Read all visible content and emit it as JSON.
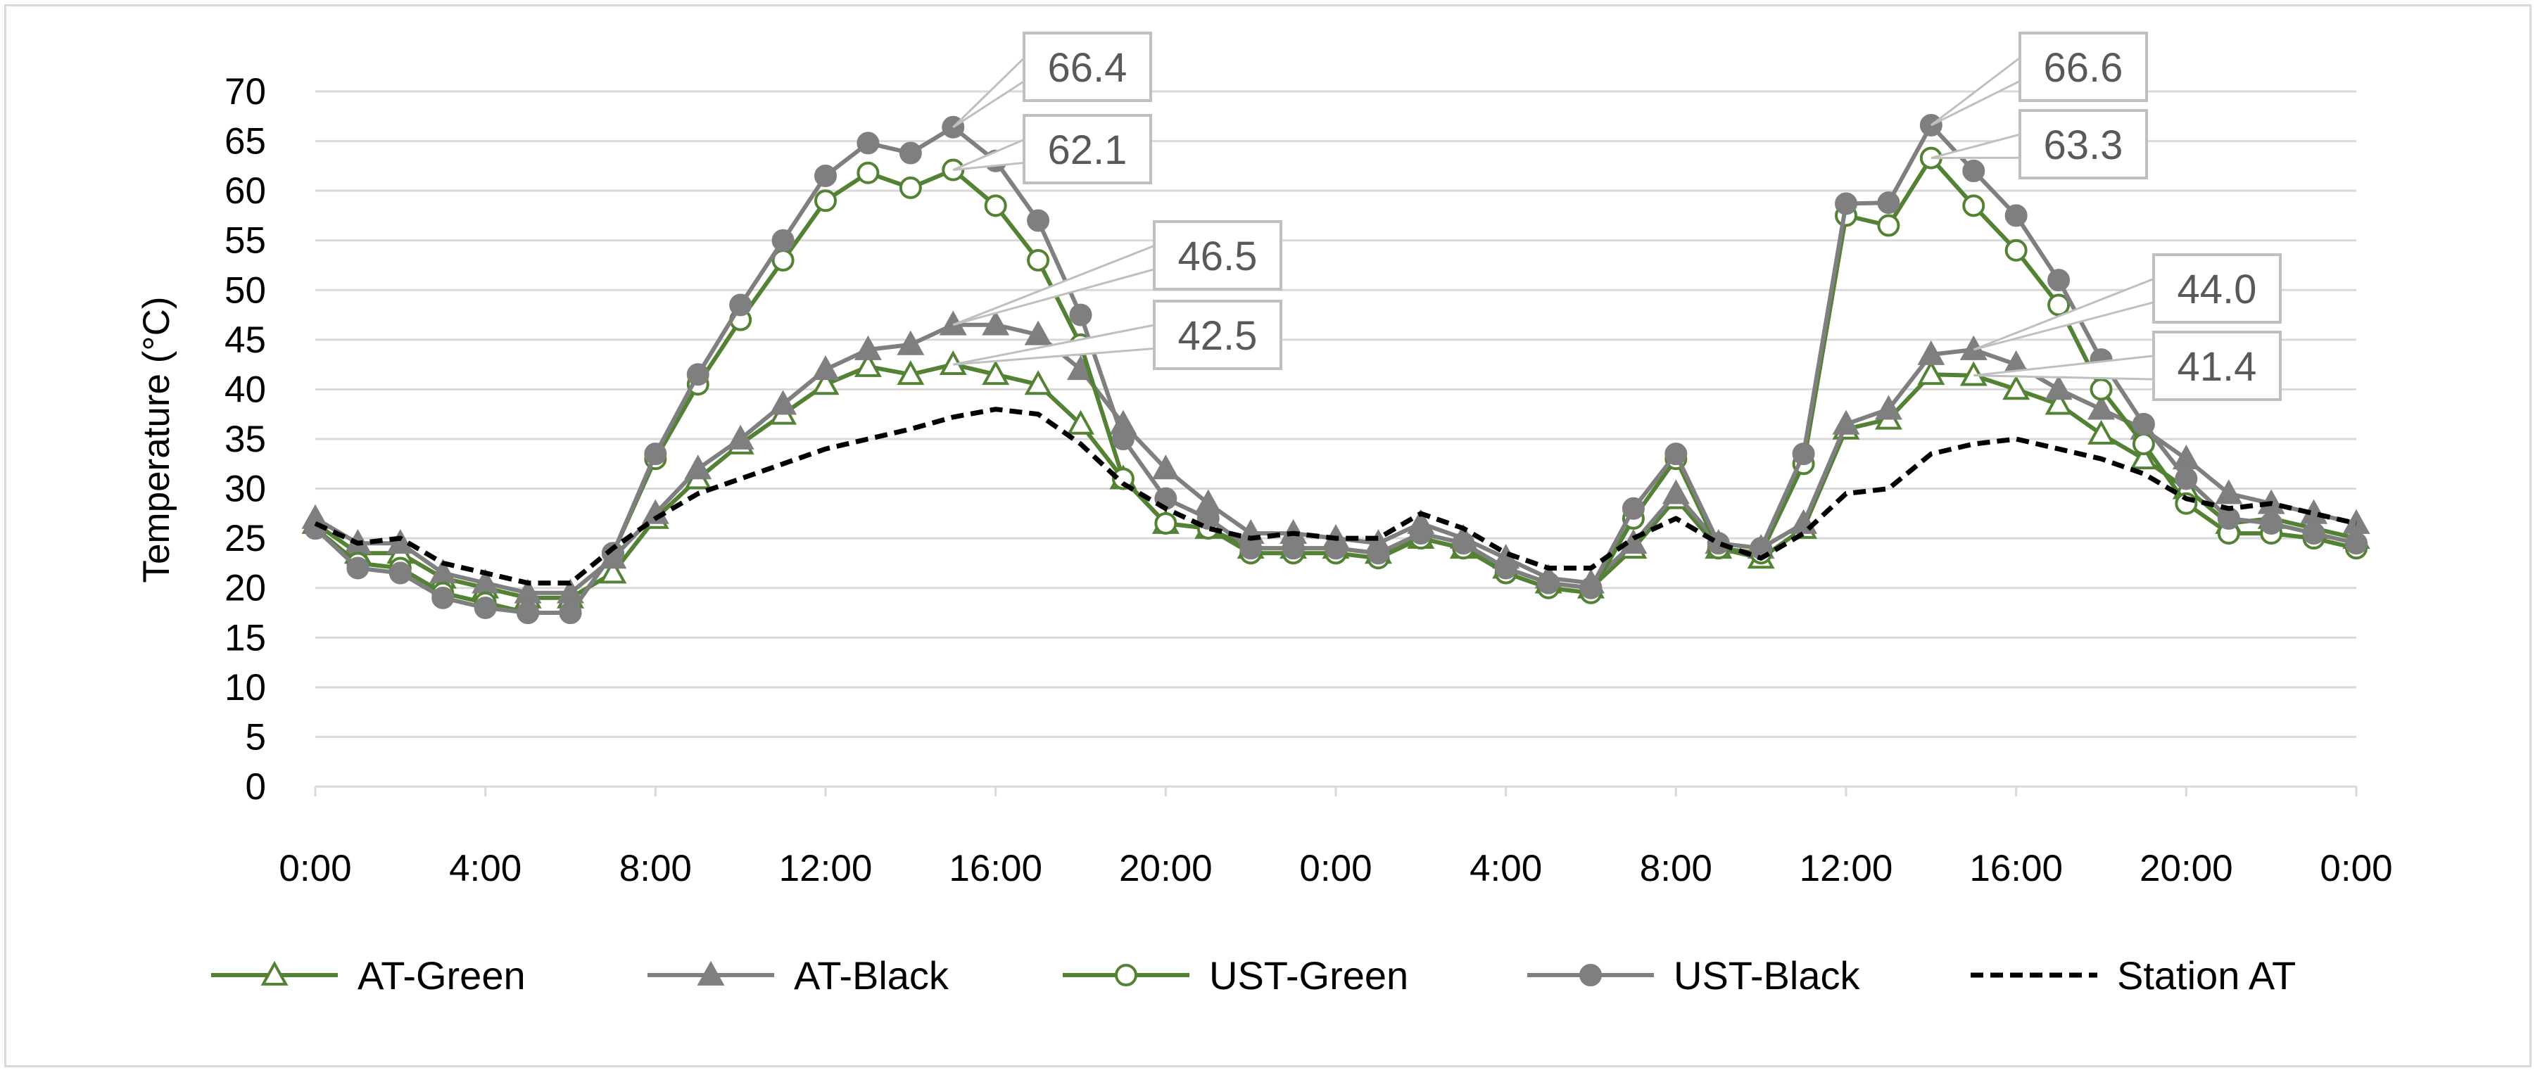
{
  "colors": {
    "green": "#548235",
    "gray": "#7f7f7f",
    "station": "#000000",
    "grid": "#d9d9d9",
    "callout_border": "#bfbfbf",
    "callout_text": "#595959"
  },
  "chart_data": {
    "type": "line",
    "title": "",
    "xlabel": "",
    "ylabel": "Temperature (°C)",
    "ylim": [
      0,
      70
    ],
    "y_ticks": [
      0,
      5,
      10,
      15,
      20,
      25,
      30,
      35,
      40,
      45,
      50,
      55,
      60,
      65,
      70
    ],
    "x_range_hours": [
      0,
      48
    ],
    "x_tick_labels": [
      "0:00",
      "4:00",
      "8:00",
      "12:00",
      "16:00",
      "20:00",
      "0:00",
      "4:00",
      "8:00",
      "12:00",
      "16:00",
      "20:00",
      "0:00"
    ],
    "grid": "horizontal",
    "legend_position": "bottom",
    "series": [
      {
        "name": "AT-Green",
        "marker": "triangle-open",
        "color": "green",
        "dash": false,
        "x": [
          0,
          1,
          2,
          3,
          4,
          5,
          6,
          7,
          8,
          9,
          10,
          11,
          12,
          13,
          14,
          15,
          16,
          17,
          18,
          19,
          20,
          21,
          22,
          23,
          24,
          25,
          26,
          27,
          28,
          29,
          30,
          31,
          32,
          33,
          34,
          35,
          36,
          37,
          38,
          39,
          40,
          41,
          42,
          43,
          44,
          45,
          46,
          47,
          48
        ],
        "y": [
          26.5,
          23.5,
          23.5,
          21,
          20,
          19,
          19,
          21.5,
          27,
          31,
          34.5,
          37.5,
          40.5,
          42.3,
          41.5,
          42.5,
          41.5,
          40.5,
          36.5,
          31,
          26.5,
          26,
          24,
          24,
          24,
          23.5,
          25,
          24,
          22,
          20.5,
          20,
          24,
          29,
          24,
          23,
          26,
          36,
          37,
          41.5,
          41.4,
          40,
          38.5,
          35.5,
          33,
          30,
          26.5,
          27,
          26,
          25
        ]
      },
      {
        "name": "AT-Black",
        "marker": "triangle-filled",
        "color": "gray",
        "dash": false,
        "x": [
          0,
          1,
          2,
          3,
          4,
          5,
          6,
          7,
          8,
          9,
          10,
          11,
          12,
          13,
          14,
          15,
          16,
          17,
          18,
          19,
          20,
          21,
          22,
          23,
          24,
          25,
          26,
          27,
          28,
          29,
          30,
          31,
          32,
          33,
          34,
          35,
          36,
          37,
          38,
          39,
          40,
          41,
          42,
          43,
          44,
          45,
          46,
          47,
          48
        ],
        "y": [
          27,
          24.5,
          24.5,
          21.5,
          20.5,
          19.5,
          19.5,
          23,
          27.5,
          32,
          35,
          38.5,
          42,
          44,
          44.5,
          46.5,
          46.5,
          45.5,
          42,
          36.5,
          32,
          28.5,
          25.5,
          25.5,
          25,
          24.5,
          26.5,
          25,
          23,
          21,
          20.5,
          24.5,
          29.5,
          24.5,
          24,
          26.5,
          36.5,
          38,
          43.5,
          44,
          42.5,
          40,
          38,
          36,
          33,
          29.5,
          28.5,
          27.5,
          26.5
        ]
      },
      {
        "name": "UST-Green",
        "marker": "circle-open",
        "color": "green",
        "dash": false,
        "x": [
          0,
          1,
          2,
          3,
          4,
          5,
          6,
          7,
          8,
          9,
          10,
          11,
          12,
          13,
          14,
          15,
          16,
          17,
          18,
          19,
          20,
          21,
          22,
          23,
          24,
          25,
          26,
          27,
          28,
          29,
          30,
          31,
          32,
          33,
          34,
          35,
          36,
          37,
          38,
          39,
          40,
          41,
          42,
          43,
          44,
          45,
          46,
          47,
          48
        ],
        "y": [
          26,
          22.5,
          22,
          19.5,
          18.5,
          17.5,
          17.5,
          23.5,
          33,
          40.5,
          47,
          53,
          59,
          61.8,
          60.3,
          62.1,
          58.5,
          53,
          44.5,
          31,
          26.5,
          26,
          23.5,
          23.5,
          23.5,
          23,
          25,
          24,
          21.5,
          20,
          19.5,
          27,
          33,
          24,
          23.5,
          32.5,
          57.5,
          56.5,
          63.3,
          58.5,
          54,
          48.5,
          40,
          34.5,
          28.5,
          25.5,
          25.5,
          25,
          24
        ]
      },
      {
        "name": "UST-Black",
        "marker": "circle-filled",
        "color": "gray",
        "dash": false,
        "x": [
          0,
          1,
          2,
          3,
          4,
          5,
          6,
          7,
          8,
          9,
          10,
          11,
          12,
          13,
          14,
          15,
          16,
          17,
          18,
          19,
          20,
          21,
          22,
          23,
          24,
          25,
          26,
          27,
          28,
          29,
          30,
          31,
          32,
          33,
          34,
          35,
          36,
          37,
          38,
          39,
          40,
          41,
          42,
          43,
          44,
          45,
          46,
          47,
          48
        ],
        "y": [
          26,
          22,
          21.5,
          19,
          18,
          17.5,
          17.5,
          23.5,
          33.5,
          41.5,
          48.5,
          55,
          61.5,
          64.8,
          63.8,
          66.4,
          63,
          57,
          47.5,
          35,
          29,
          27,
          24,
          24,
          24,
          23.5,
          25.5,
          24.5,
          22,
          20.5,
          20,
          28,
          33.5,
          24.5,
          24,
          33.5,
          58.7,
          58.8,
          66.6,
          62,
          57.5,
          51,
          43,
          36.5,
          31,
          27,
          26.5,
          25.5,
          24.5
        ]
      },
      {
        "name": "Station AT",
        "marker": "none",
        "color": "station",
        "dash": true,
        "x": [
          0,
          1,
          2,
          3,
          4,
          5,
          6,
          7,
          8,
          9,
          10,
          11,
          12,
          13,
          14,
          15,
          16,
          17,
          18,
          19,
          20,
          21,
          22,
          23,
          24,
          25,
          26,
          27,
          28,
          29,
          30,
          31,
          32,
          33,
          34,
          35,
          36,
          37,
          38,
          39,
          40,
          41,
          42,
          43,
          44,
          45,
          46,
          47,
          48
        ],
        "y": [
          26.5,
          24.5,
          25,
          22.5,
          21.5,
          20.5,
          20.5,
          24,
          27,
          29.5,
          31,
          32.5,
          34,
          35,
          36,
          37.2,
          38,
          37.5,
          34.5,
          30.5,
          28,
          26,
          25,
          25.5,
          25,
          25,
          27.5,
          26,
          23.5,
          22,
          22,
          25,
          27,
          24.5,
          23,
          25.5,
          29.5,
          30,
          33.5,
          34.5,
          35,
          34,
          33,
          31.5,
          29,
          28,
          28.5,
          27.5,
          26.5
        ]
      }
    ],
    "callouts": [
      {
        "text": "66.4",
        "series": "UST-Black",
        "x": 15,
        "y": 66.4
      },
      {
        "text": "62.1",
        "series": "UST-Green",
        "x": 15,
        "y": 62.1
      },
      {
        "text": "46.5",
        "series": "AT-Black",
        "x": 15,
        "y": 46.5
      },
      {
        "text": "42.5",
        "series": "AT-Green",
        "x": 15,
        "y": 42.5
      },
      {
        "text": "66.6",
        "series": "UST-Black",
        "x": 38,
        "y": 66.6
      },
      {
        "text": "63.3",
        "series": "UST-Green",
        "x": 38,
        "y": 63.3
      },
      {
        "text": "44.0",
        "series": "AT-Black",
        "x": 39,
        "y": 44.0
      },
      {
        "text": "41.4",
        "series": "AT-Green",
        "x": 39,
        "y": 41.4
      }
    ]
  }
}
